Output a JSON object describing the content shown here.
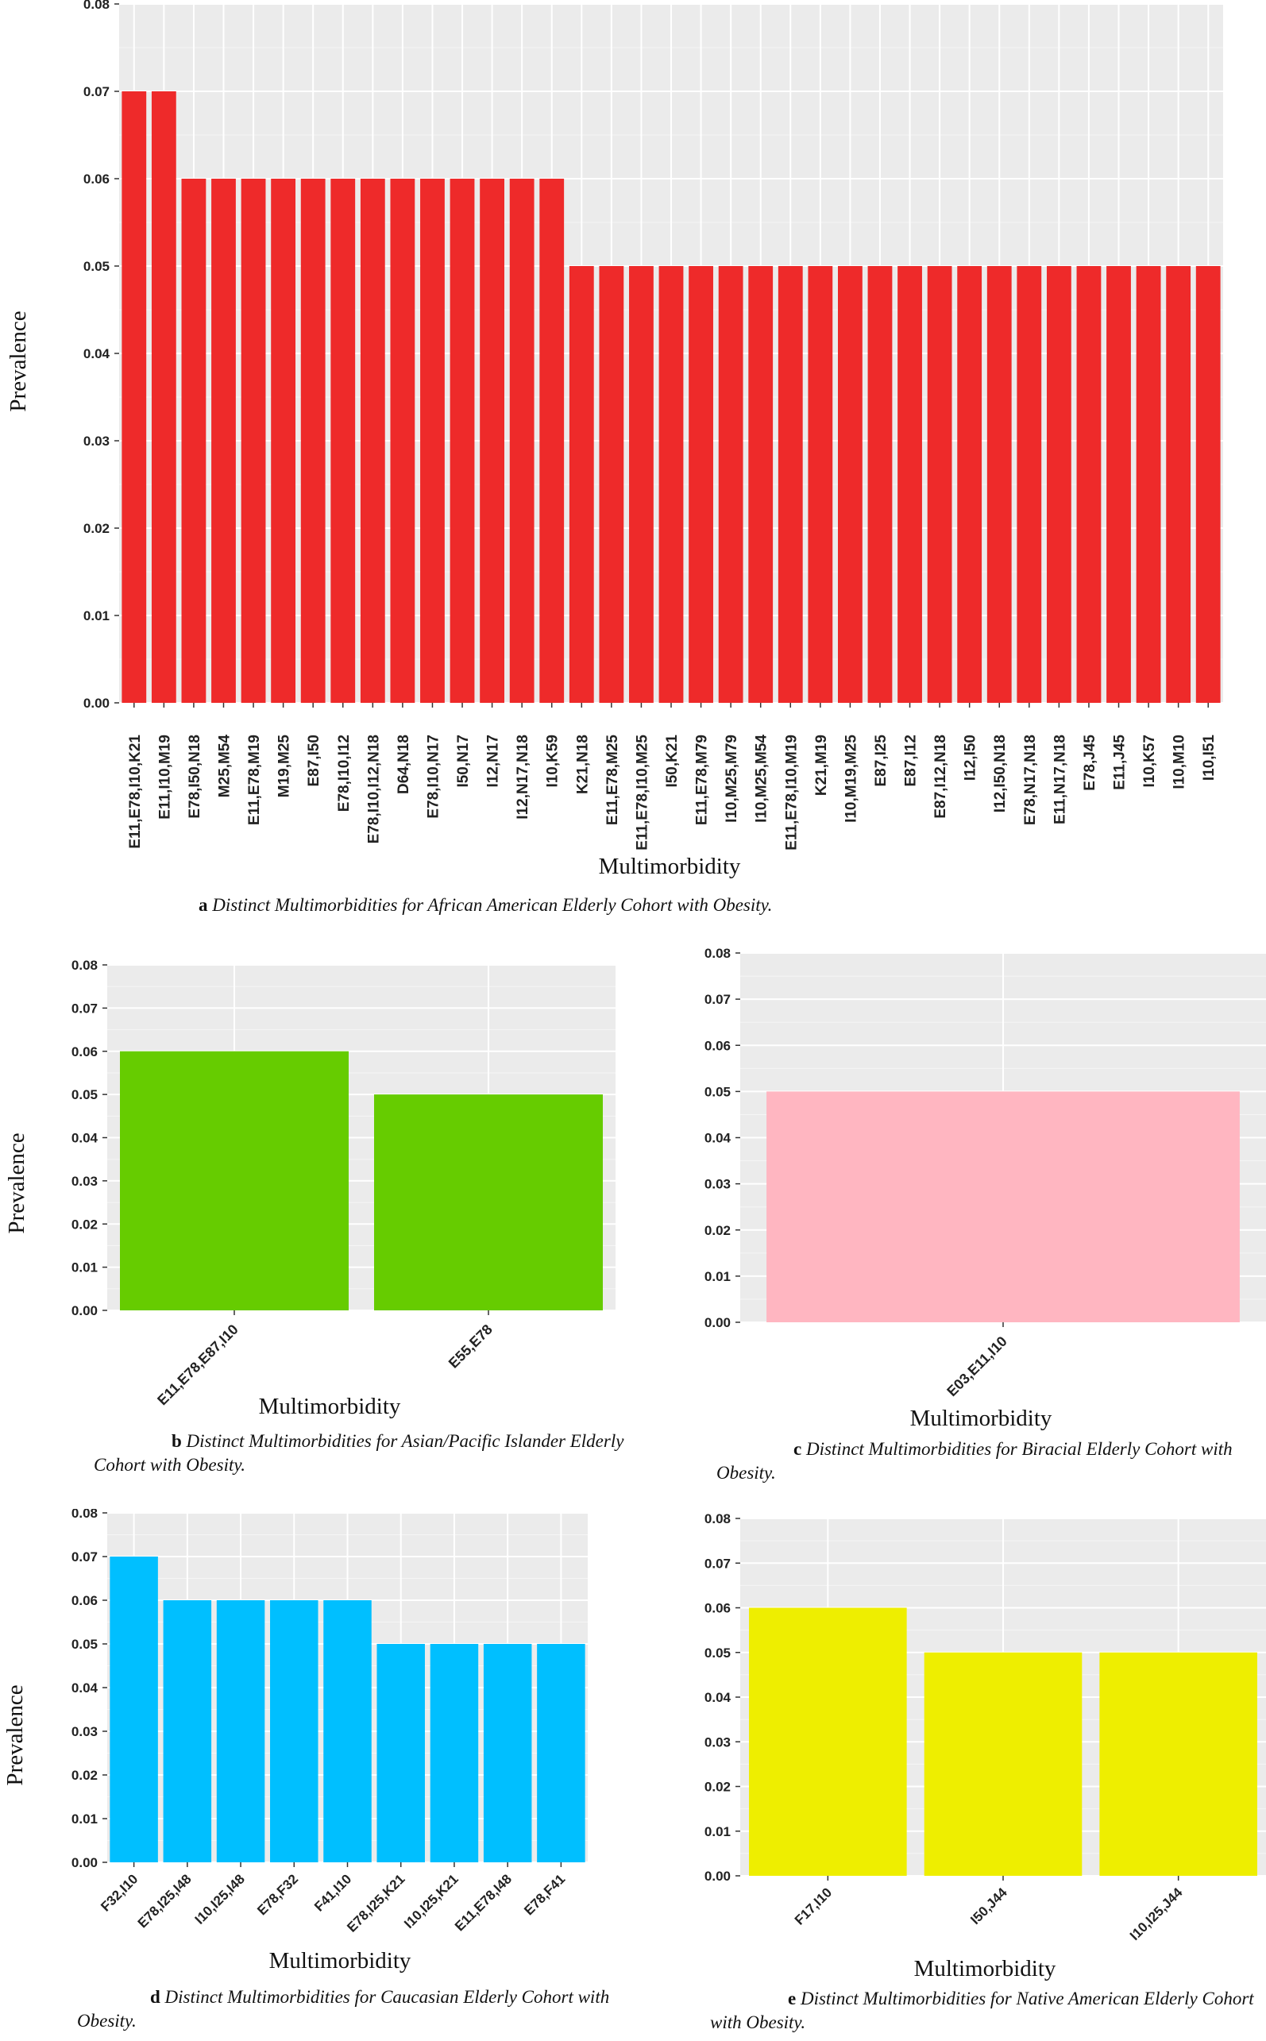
{
  "chart_data": [
    {
      "id": "a",
      "type": "bar",
      "title": "",
      "xlabel": "Multimorbidity",
      "ylabel": "Prevalence",
      "ylim": [
        0,
        0.08
      ],
      "yticks": [
        "0.00",
        "0.01",
        "0.02",
        "0.03",
        "0.04",
        "0.05",
        "0.06",
        "0.07",
        "0.08"
      ],
      "grid": true,
      "color": "#ee2a2a",
      "categories": [
        "E11,E78,I10,K21",
        "E11,I10,M19",
        "E78,I50,N18",
        "M25,M54",
        "E11,E78,M19",
        "M19,M25",
        "E87,I50",
        "E78,I10,I12",
        "E78,I10,I12,N18",
        "D64,N18",
        "E78,I10,N17",
        "I50,N17",
        "I12,N17",
        "I12,N17,N18",
        "I10,K59",
        "K21,N18",
        "E11,E78,M25",
        "E11,E78,I10,M25",
        "I50,K21",
        "E11,E78,M79",
        "I10,M25,M79",
        "I10,M25,M54",
        "E11,E78,I10,M19",
        "K21,M19",
        "I10,M19,M25",
        "E87,I25",
        "E87,I12",
        "E87,I12,N18",
        "I12,I50",
        "I12,I50,N18",
        "E78,N17,N18",
        "E11,N17,N18",
        "E78,J45",
        "E11,J45",
        "I10,K57",
        "I10,M10",
        "I10,I51"
      ],
      "values": [
        0.07,
        0.07,
        0.06,
        0.06,
        0.06,
        0.06,
        0.06,
        0.06,
        0.06,
        0.06,
        0.06,
        0.06,
        0.06,
        0.06,
        0.06,
        0.05,
        0.05,
        0.05,
        0.05,
        0.05,
        0.05,
        0.05,
        0.05,
        0.05,
        0.05,
        0.05,
        0.05,
        0.05,
        0.05,
        0.05,
        0.05,
        0.05,
        0.05,
        0.05,
        0.05,
        0.05,
        0.05
      ],
      "caption_letter": "a",
      "caption_text": "Distinct Multimorbidities for African American Elderly Cohort with Obesity."
    },
    {
      "id": "b",
      "type": "bar",
      "title": "",
      "xlabel": "Multimorbidity",
      "ylabel": "Prevalence",
      "ylim": [
        0,
        0.08
      ],
      "yticks": [
        "0.00",
        "0.01",
        "0.02",
        "0.03",
        "0.04",
        "0.05",
        "0.06",
        "0.07",
        "0.08"
      ],
      "grid": true,
      "color": "#66cc00",
      "categories": [
        "E11,E78,E87,I10",
        "E55,E78"
      ],
      "values": [
        0.06,
        0.05
      ],
      "caption_letter": "b",
      "caption_text": "Distinct Multimorbidities for Asian/Pacific Islander Elderly Cohort with Obesity."
    },
    {
      "id": "c",
      "type": "bar",
      "title": "",
      "xlabel": "Multimorbidity",
      "ylabel": "",
      "ylim": [
        0,
        0.08
      ],
      "yticks": [
        "0.00",
        "0.01",
        "0.02",
        "0.03",
        "0.04",
        "0.05",
        "0.06",
        "0.07",
        "0.08"
      ],
      "grid": true,
      "color": "#ffb6c1",
      "categories": [
        "E03,E11,I10"
      ],
      "values": [
        0.05
      ],
      "caption_letter": "c",
      "caption_text": "Distinct Multimorbidities for Biracial Elderly Cohort with Obesity."
    },
    {
      "id": "d",
      "type": "bar",
      "title": "",
      "xlabel": "Multimorbidity",
      "ylabel": "Prevalence",
      "ylim": [
        0,
        0.08
      ],
      "yticks": [
        "0.00",
        "0.01",
        "0.02",
        "0.03",
        "0.04",
        "0.05",
        "0.06",
        "0.07",
        "0.08"
      ],
      "grid": true,
      "color": "#00bfff",
      "categories": [
        "F32,I10",
        "E78,I25,I48",
        "I10,I25,I48",
        "E78,F32",
        "F41,I10",
        "E78,I25,K21",
        "I10,I25,K21",
        "E11,E78,I48",
        "E78,F41"
      ],
      "values": [
        0.07,
        0.06,
        0.06,
        0.06,
        0.06,
        0.05,
        0.05,
        0.05,
        0.05
      ],
      "caption_letter": "d",
      "caption_text": "Distinct Multimorbidities for Caucasian Elderly Cohort with Obesity."
    },
    {
      "id": "e",
      "type": "bar",
      "title": "",
      "xlabel": "Multimorbidity",
      "ylabel": "",
      "ylim": [
        0,
        0.08
      ],
      "yticks": [
        "0.00",
        "0.01",
        "0.02",
        "0.03",
        "0.04",
        "0.05",
        "0.06",
        "0.07",
        "0.08"
      ],
      "grid": true,
      "color": "#eeee00",
      "categories": [
        "F17,I10",
        "I50,J44",
        "I10,I25,J44"
      ],
      "values": [
        0.06,
        0.05,
        0.05
      ],
      "caption_letter": "e",
      "caption_text": "Distinct Multimorbidities for Native American Elderly Cohort with Obesity."
    }
  ]
}
